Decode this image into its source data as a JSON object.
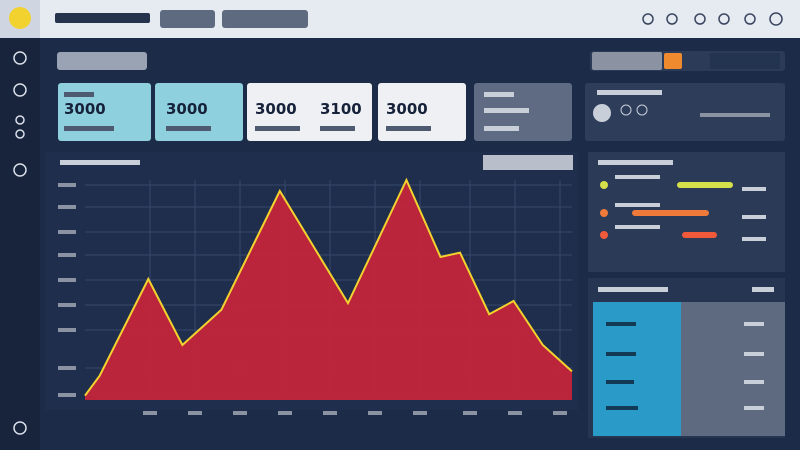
{
  "kpis": {
    "values": [
      "3000",
      "3000",
      "3000",
      "3100",
      "3000"
    ]
  },
  "chart": {
    "type": "area",
    "x": [
      0,
      3,
      13,
      20,
      28,
      40,
      54,
      66,
      73,
      77,
      83,
      88,
      94,
      100
    ],
    "values": [
      2,
      11,
      55,
      25,
      41,
      95,
      44,
      100,
      65,
      67,
      39,
      45,
      25,
      13
    ],
    "xlim": [
      0,
      100
    ],
    "ylim": [
      0,
      100
    ],
    "color": "#c4253a",
    "line_color": "#f2d22e"
  },
  "progress": {
    "values": [
      40,
      55,
      25
    ],
    "colors": [
      "#d6e04a",
      "#f07a3a",
      "#f05a3a"
    ]
  }
}
